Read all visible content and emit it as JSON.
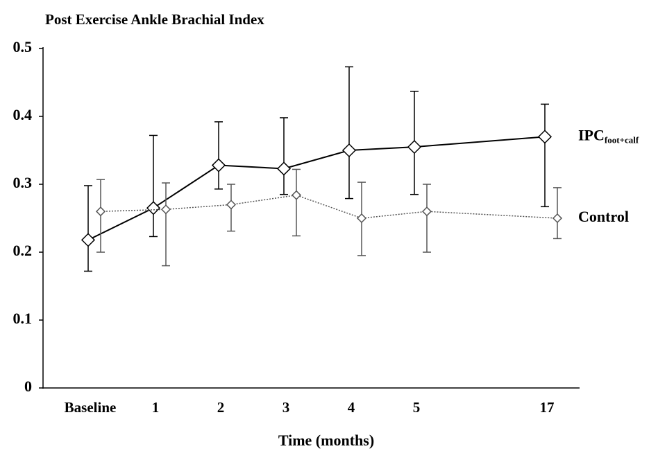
{
  "chart_data": {
    "type": "line",
    "title": "Post Exercise Ankle Brachial Index",
    "x_label": "Time (months)",
    "categories": [
      "Baseline",
      "1",
      "2",
      "3",
      "4",
      "5",
      "17"
    ],
    "ylim": [
      0,
      0.5
    ],
    "yticks": [
      0,
      0.1,
      0.2,
      0.3,
      0.4,
      0.5
    ],
    "series": [
      {
        "name": "IPC",
        "name_sub": "foot+calf",
        "color": "#000000",
        "line_style": "solid",
        "marker": "diamond",
        "values": [
          0.218,
          0.265,
          0.328,
          0.323,
          0.35,
          0.355,
          0.37
        ],
        "low": [
          0.172,
          0.223,
          0.293,
          0.285,
          0.279,
          0.285,
          0.267
        ],
        "high": [
          0.298,
          0.372,
          0.392,
          0.398,
          0.473,
          0.437,
          0.418
        ]
      },
      {
        "name": "Control",
        "color": "#555555",
        "line_style": "dotted",
        "marker": "diamond",
        "values": [
          0.26,
          0.263,
          0.27,
          0.284,
          0.25,
          0.26,
          0.25
        ],
        "low": [
          0.2,
          0.18,
          0.231,
          0.224,
          0.195,
          0.2,
          0.22
        ],
        "high": [
          0.307,
          0.302,
          0.3,
          0.322,
          0.303,
          0.3,
          0.295
        ]
      }
    ]
  }
}
